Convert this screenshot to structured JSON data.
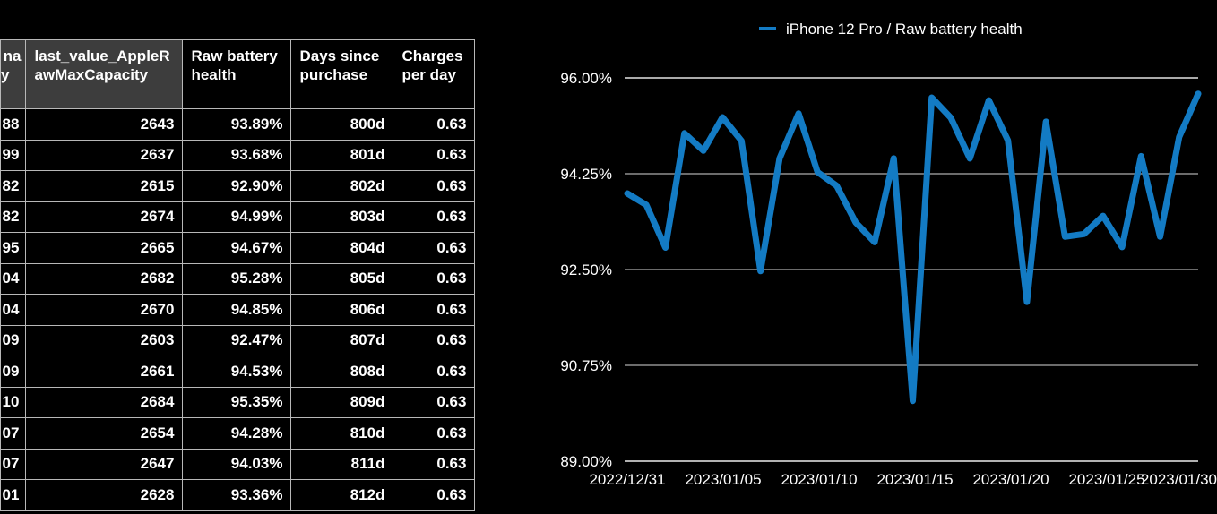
{
  "colors": {
    "background": "#000000",
    "series_blue": "#137bc4",
    "table_border": "#b8b8b8",
    "header_highlight_bg": "#3d3d3d",
    "header_plain_bg": "#000000",
    "gridline": "#8f8f8f",
    "text": "#ffffff"
  },
  "table": {
    "columns": [
      {
        "header_lines": [
          "na",
          "y"
        ],
        "truncated": true,
        "header_bg": "gray"
      },
      {
        "header_lines": [
          "last_value_AppleR",
          "awMaxCapacity"
        ],
        "truncated": false,
        "header_bg": "gray"
      },
      {
        "header_lines": [
          "Raw battery",
          "health"
        ],
        "truncated": false,
        "header_bg": "black"
      },
      {
        "header_lines": [
          "Days since",
          "purchase"
        ],
        "truncated": false,
        "header_bg": "black"
      },
      {
        "header_lines": [
          "Charges",
          "per day"
        ],
        "truncated": false,
        "header_bg": "black"
      }
    ],
    "rows": [
      [
        "88",
        "2643",
        "93.89%",
        "800d",
        "0.63"
      ],
      [
        "99",
        "2637",
        "93.68%",
        "801d",
        "0.63"
      ],
      [
        "82",
        "2615",
        "92.90%",
        "802d",
        "0.63"
      ],
      [
        "82",
        "2674",
        "94.99%",
        "803d",
        "0.63"
      ],
      [
        "95",
        "2665",
        "94.67%",
        "804d",
        "0.63"
      ],
      [
        "04",
        "2682",
        "95.28%",
        "805d",
        "0.63"
      ],
      [
        "04",
        "2670",
        "94.85%",
        "806d",
        "0.63"
      ],
      [
        "09",
        "2603",
        "92.47%",
        "807d",
        "0.63"
      ],
      [
        "09",
        "2661",
        "94.53%",
        "808d",
        "0.63"
      ],
      [
        "10",
        "2684",
        "95.35%",
        "809d",
        "0.63"
      ],
      [
        "07",
        "2654",
        "94.28%",
        "810d",
        "0.63"
      ],
      [
        "07",
        "2647",
        "94.03%",
        "811d",
        "0.63"
      ],
      [
        "01",
        "2628",
        "93.36%",
        "812d",
        "0.63"
      ]
    ]
  },
  "chart_data": {
    "type": "line",
    "legend": {
      "label": "iPhone 12 Pro / Raw battery health",
      "position": "top-center"
    },
    "grid": true,
    "ylim": [
      89,
      96
    ],
    "y_ticks": [
      "96.00%",
      "94.25%",
      "92.50%",
      "90.75%",
      "89.00%"
    ],
    "y_tick_values": [
      96.0,
      94.25,
      92.5,
      90.75,
      89.0
    ],
    "x_tick_labels": [
      "2022/12/31",
      "2023/01/05",
      "2023/01/10",
      "2023/01/15",
      "2023/01/20",
      "2023/01/25",
      "2023/01/30"
    ],
    "x": [
      "2022/12/31",
      "2023/01/01",
      "2023/01/02",
      "2023/01/03",
      "2023/01/04",
      "2023/01/05",
      "2023/01/06",
      "2023/01/07",
      "2023/01/08",
      "2023/01/09",
      "2023/01/10",
      "2023/01/11",
      "2023/01/12",
      "2023/01/13",
      "2023/01/14",
      "2023/01/15",
      "2023/01/16",
      "2023/01/17",
      "2023/01/18",
      "2023/01/19",
      "2023/01/20",
      "2023/01/21",
      "2023/01/22",
      "2023/01/23",
      "2023/01/24",
      "2023/01/25",
      "2023/01/26",
      "2023/01/27",
      "2023/01/28",
      "2023/01/29",
      "2023/01/30"
    ],
    "series": [
      {
        "name": "iPhone 12 Pro / Raw battery health",
        "color": "#137bc4",
        "unit": "%",
        "values": [
          93.89,
          93.68,
          92.9,
          94.99,
          94.67,
          95.28,
          94.85,
          92.47,
          94.53,
          95.35,
          94.28,
          94.03,
          93.36,
          93.0,
          94.53,
          90.1,
          95.64,
          95.27,
          94.53,
          95.59,
          94.86,
          91.91,
          95.2,
          93.1,
          93.15,
          93.48,
          92.91,
          94.57,
          93.1,
          94.92,
          95.71
        ]
      }
    ]
  }
}
